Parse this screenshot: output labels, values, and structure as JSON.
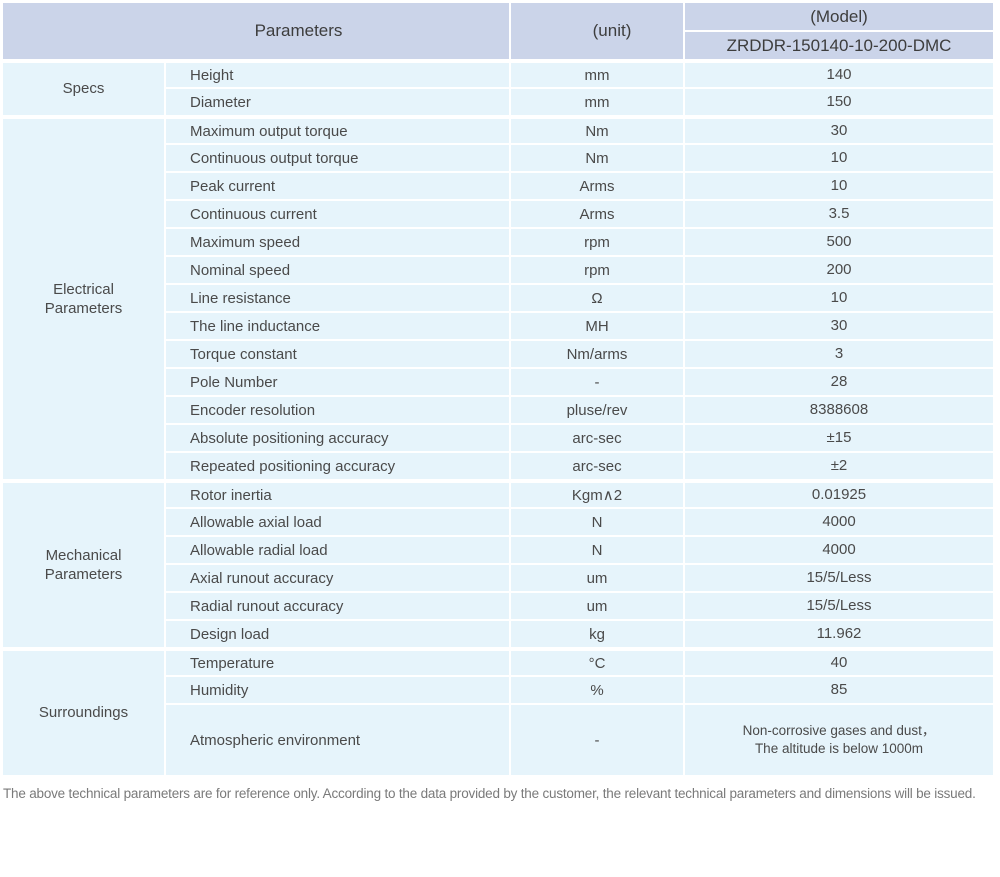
{
  "header": {
    "parameters_label": "Parameters",
    "unit_label": "(unit)",
    "model_label": "(Model)",
    "model_value": "ZRDDR-150140-10-200-DMC"
  },
  "groups": [
    {
      "name": "Specs",
      "rows": [
        {
          "param": "Height",
          "unit": "mm",
          "value": "140"
        },
        {
          "param": "Diameter",
          "unit": "mm",
          "value": "150"
        }
      ]
    },
    {
      "name": "Electrical\nParameters",
      "rows": [
        {
          "param": "Maximum output torque",
          "unit": "Nm",
          "value": "30"
        },
        {
          "param": "Continuous output torque",
          "unit": "Nm",
          "value": "10"
        },
        {
          "param": "Peak current",
          "unit": "Arms",
          "value": "10"
        },
        {
          "param": "Continuous current",
          "unit": "Arms",
          "value": "3.5"
        },
        {
          "param": "Maximum speed",
          "unit": "rpm",
          "value": "500"
        },
        {
          "param": "Nominal speed",
          "unit": "rpm",
          "value": "200"
        },
        {
          "param": "Line resistance",
          "unit": "Ω",
          "value": "10"
        },
        {
          "param": "The line inductance",
          "unit": "MH",
          "value": "30"
        },
        {
          "param": "Torque constant",
          "unit": "Nm/arms",
          "value": "3"
        },
        {
          "param": "Pole Number",
          "unit": "-",
          "value": "28"
        },
        {
          "param": "Encoder resolution",
          "unit": "pluse/rev",
          "value": "8388608"
        },
        {
          "param": "Absolute positioning accuracy",
          "unit": "arc-sec",
          "value": "±15"
        },
        {
          "param": "Repeated positioning accuracy",
          "unit": "arc-sec",
          "value": "±2"
        }
      ]
    },
    {
      "name": "Mechanical\nParameters",
      "rows": [
        {
          "param": "Rotor inertia",
          "unit": "Kgm∧2",
          "value": "0.01925"
        },
        {
          "param": "Allowable axial load",
          "unit": "N",
          "value": "4000"
        },
        {
          "param": "Allowable radial load",
          "unit": "N",
          "value": "4000"
        },
        {
          "param": "Axial runout accuracy",
          "unit": "um",
          "value": "15/5/Less"
        },
        {
          "param": "Radial runout accuracy",
          "unit": "um",
          "value": "15/5/Less"
        },
        {
          "param": "Design load",
          "unit": "kg",
          "value": "11.962"
        }
      ]
    },
    {
      "name": "Surroundings",
      "rows": [
        {
          "param": "Temperature",
          "unit": "°C",
          "value": "40"
        },
        {
          "param": "Humidity",
          "unit": "%",
          "value": "85"
        },
        {
          "param": "Atmospheric environment",
          "unit": "-",
          "value": "Non-corrosive gases and dust，\nThe altitude is below 1000m"
        }
      ]
    }
  ],
  "footer_note": "The above technical parameters are for reference only. According to the data provided by the customer, the relevant technical parameters and dimensions will be issued.",
  "colors": {
    "header_bg": "#cbd4e9",
    "cell_bg": "#e6f4fb",
    "divider": "#ffffff",
    "body_text": "#4a4a4a",
    "footer_text": "#7a7a7a"
  }
}
